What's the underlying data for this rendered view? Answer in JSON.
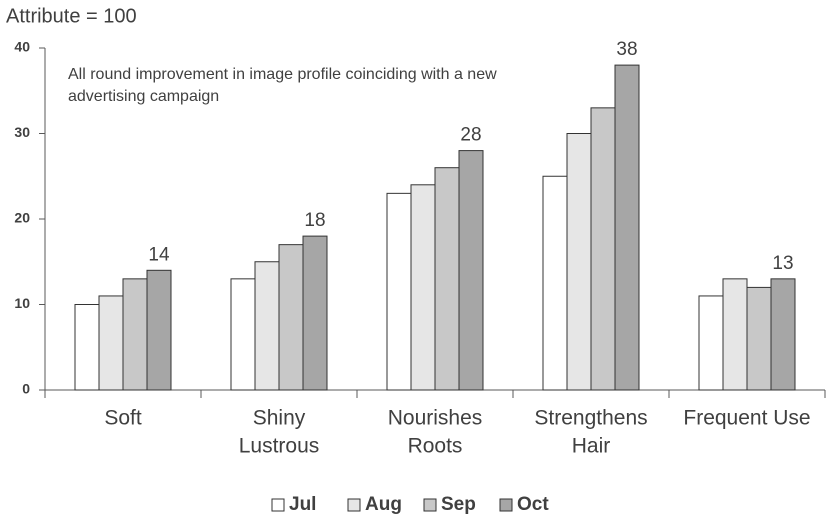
{
  "chart_data": {
    "type": "bar",
    "title": "Attribute = 100",
    "annotation": "All round improvement in image profile coinciding with a new advertising campaign",
    "categories": [
      [
        "Soft"
      ],
      [
        "Shiny",
        "Lustrous"
      ],
      [
        "Nourishes",
        "Roots"
      ],
      [
        "Strengthens",
        "Hair"
      ],
      [
        "Frequent Use"
      ]
    ],
    "series": [
      {
        "name": "Jul",
        "color": "#ffffff",
        "values": [
          10,
          13,
          23,
          25,
          11
        ]
      },
      {
        "name": "Aug",
        "color": "#e6e6e6",
        "values": [
          11,
          15,
          24,
          30,
          13
        ]
      },
      {
        "name": "Sep",
        "color": "#c8c8c8",
        "values": [
          13,
          17,
          26,
          33,
          12
        ]
      },
      {
        "name": "Oct",
        "color": "#a6a6a6",
        "values": [
          14,
          18,
          28,
          38,
          13
        ],
        "data_labels": true
      }
    ],
    "ylim": [
      0,
      40
    ],
    "yticks": [
      0,
      10,
      20,
      30,
      40
    ],
    "grid": false,
    "legend": "bottom"
  }
}
